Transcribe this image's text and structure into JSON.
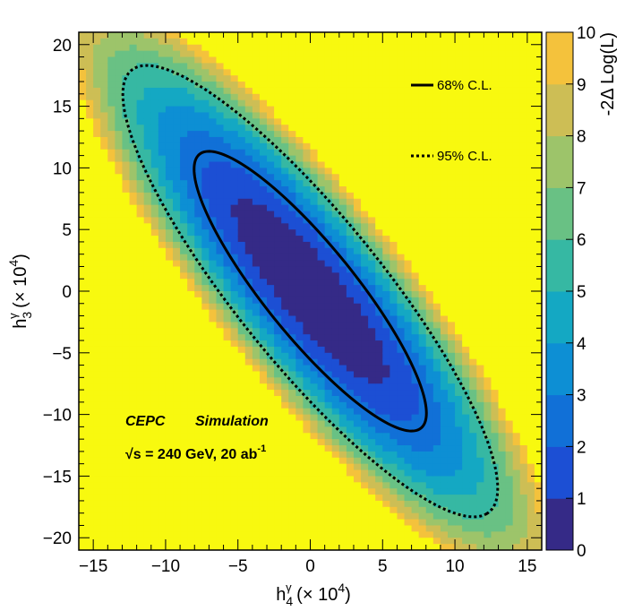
{
  "chart_data": {
    "type": "heatmap",
    "title": "",
    "xlabel": {
      "base": "h",
      "sub": "4",
      "sup": "γ",
      "rest": " (× 10",
      "exp": "4",
      "close": ")"
    },
    "ylabel": {
      "base": "h",
      "sub": "3",
      "sup": "γ",
      "rest": " (× 10",
      "exp": "4",
      "close": ")"
    },
    "zlabel": "-2Δ Log(L)",
    "xlim": [
      -16,
      16
    ],
    "ylim": [
      -21,
      21
    ],
    "zlim": [
      0,
      10
    ],
    "x_ticks": [
      -15,
      -10,
      -5,
      0,
      5,
      10,
      15
    ],
    "x_tick_labels": [
      "−15",
      "−10",
      "−5",
      "0",
      "5",
      "10",
      "15"
    ],
    "y_ticks": [
      -20,
      -15,
      -10,
      -5,
      0,
      5,
      10,
      15,
      20
    ],
    "y_tick_labels": [
      "−20",
      "−15",
      "−10",
      "−5",
      "0",
      "5",
      "10",
      "15",
      "20"
    ],
    "z_ticks": [
      0,
      1,
      2,
      3,
      4,
      5,
      6,
      7,
      8,
      9,
      10
    ],
    "z_tick_labels": [
      "0",
      "1",
      "2",
      "3",
      "4",
      "5",
      "6",
      "7",
      "8",
      "9",
      "10"
    ],
    "surface": {
      "center": [
        0,
        0
      ],
      "minimum": 0,
      "angle_deg": -56,
      "semi_major_at_68": 13.5,
      "semi_minor_at_68": 3.3,
      "level_68": 2.3,
      "level_95": 5.99,
      "max": 10
    },
    "series": [
      {
        "name": "68% C.L.",
        "level": 2.3,
        "style": "solid"
      },
      {
        "name": "95% C.L.",
        "level": 5.99,
        "style": "dotted"
      }
    ],
    "legend": {
      "position": "top-right",
      "entries": [
        "68% C.L.",
        "95% C.L."
      ]
    },
    "annotations": {
      "experiment": "CEPC",
      "label": "Simulation",
      "energy": "√s = 240 GeV, 20 ab",
      "energy_sup": "-1"
    },
    "palette": [
      "#352a87",
      "#1c4fd4",
      "#1170d7",
      "#0d8fd4",
      "#14a8c3",
      "#36b8a3",
      "#69c184",
      "#9dc46a",
      "#cdbe55",
      "#f4c23c",
      "#f8f90f"
    ]
  }
}
